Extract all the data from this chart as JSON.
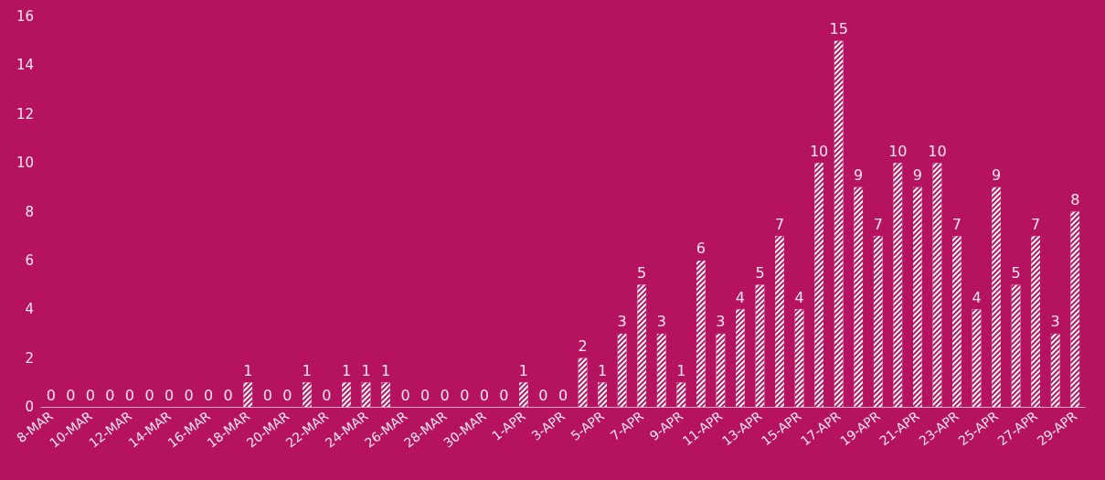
{
  "chart_data": {
    "type": "bar",
    "categories": [
      "8-MAR",
      null,
      "10-MAR",
      null,
      "12-MAR",
      null,
      "14-MAR",
      null,
      "16-MAR",
      null,
      "18-MAR",
      null,
      "20-MAR",
      null,
      "22-MAR",
      null,
      "24-MAR",
      null,
      "26-MAR",
      null,
      "28-MAR",
      null,
      "30-MAR",
      null,
      "1-APR",
      null,
      "3-APR",
      null,
      "5-APR",
      null,
      "7-APR",
      null,
      "9-APR",
      null,
      "11-APR",
      null,
      "13-APR",
      null,
      "15-APR",
      null,
      "17-APR",
      null,
      "19-APR",
      null,
      "21-APR",
      null,
      "23-APR",
      null,
      "25-APR",
      null,
      "27-APR",
      null,
      "29-APR"
    ],
    "values": [
      0,
      0,
      0,
      0,
      0,
      0,
      0,
      0,
      0,
      0,
      1,
      0,
      0,
      1,
      0,
      1,
      1,
      1,
      0,
      0,
      0,
      0,
      0,
      0,
      1,
      0,
      0,
      2,
      1,
      3,
      5,
      3,
      1,
      6,
      3,
      4,
      5,
      7,
      4,
      10,
      15,
      9,
      7,
      10,
      9,
      10,
      7,
      4,
      9,
      5,
      7,
      3,
      8
    ],
    "color": "#ffffff",
    "ylim": [
      0,
      16
    ],
    "yticks": [
      0,
      2,
      4,
      6,
      8,
      10,
      12,
      14,
      16
    ],
    "grid": false,
    "data_labels": true
  }
}
